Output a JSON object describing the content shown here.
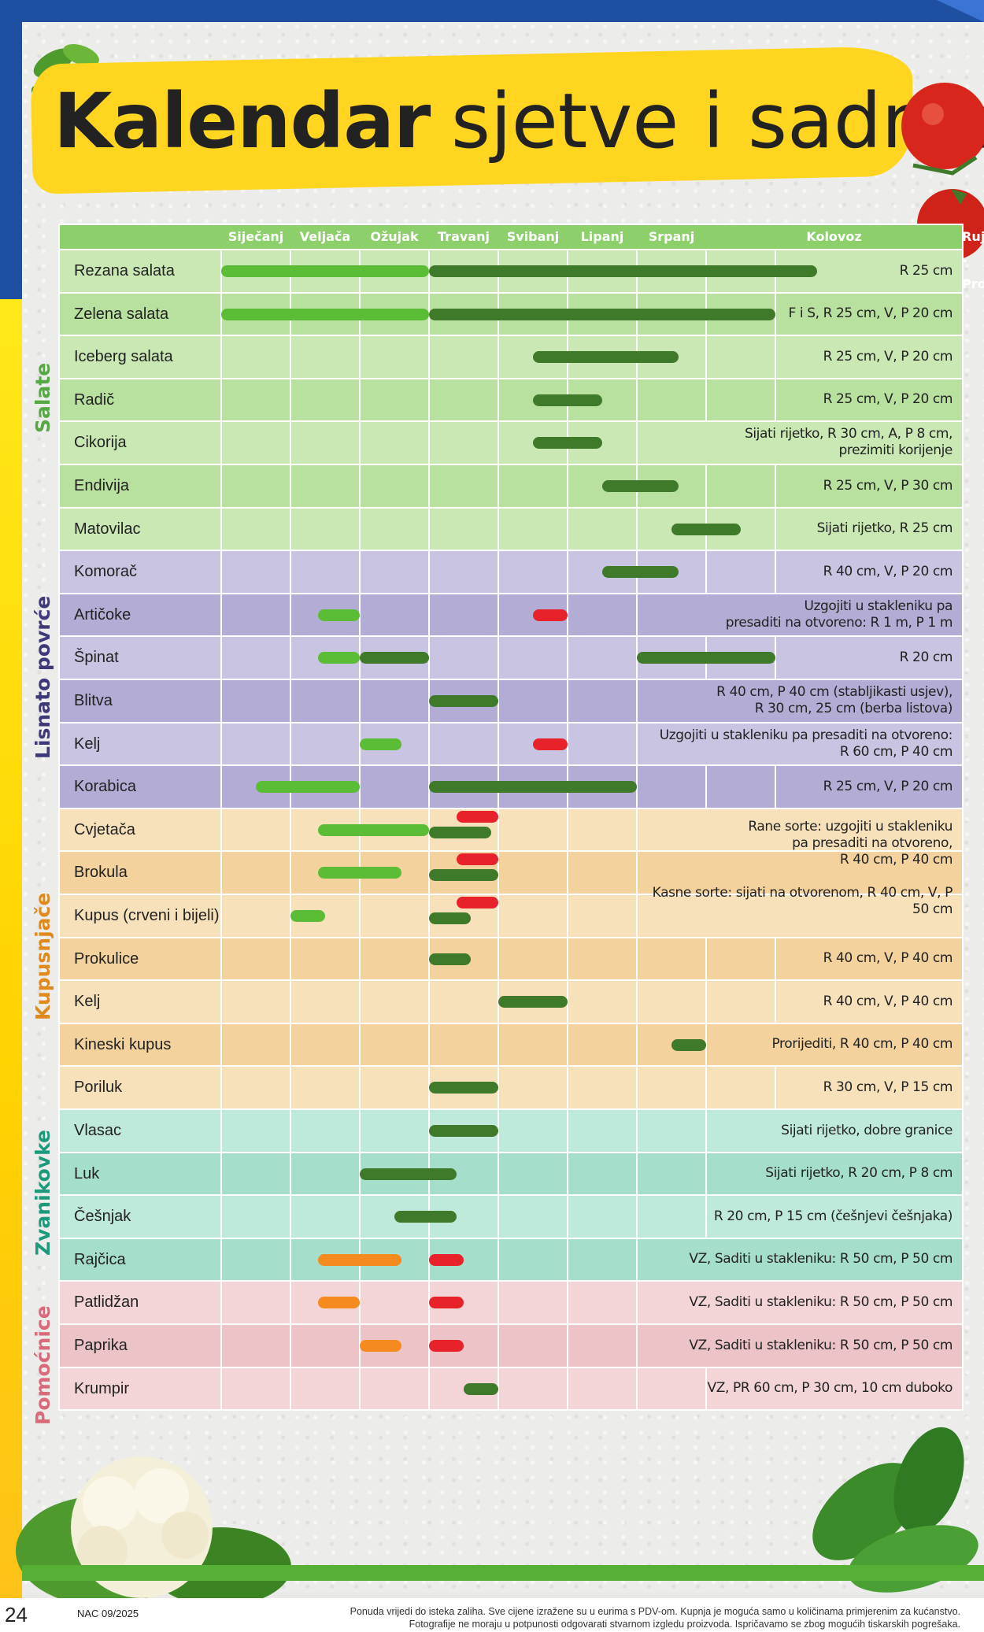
{
  "title": {
    "bold": "Kalendar",
    "light": "sjetve i sadnje"
  },
  "colors": {
    "sowing_outdoor": "#3f7a2a",
    "sowing_indoor": "#5bbd36",
    "planting_out": "#e8222b",
    "seedling_indoor": "#f58a1f",
    "header_bg": "#8dcf6b"
  },
  "months": [
    "Siječanj",
    "Veljača",
    "Ožujak",
    "Travanj",
    "Svibanj",
    "Lipanj",
    "Srpanj",
    "Kolovoz",
    "Rujan   -   Prosinac"
  ],
  "groups": [
    {
      "label": "Salate",
      "color": "#55a844",
      "rows": [
        0,
        6
      ]
    },
    {
      "label": "Lisnato povrće",
      "color": "#3e3a7a",
      "rows": [
        7,
        12
      ]
    },
    {
      "label": "Kupusnjače",
      "color": "#e08a1e",
      "rows": [
        13,
        19
      ]
    },
    {
      "label": "Zvanikovke",
      "color": "#1d9a7b",
      "rows": [
        20,
        23
      ]
    },
    {
      "label": "Pomoćnice",
      "color": "#d86a7a",
      "rows": [
        24,
        27
      ]
    }
  ],
  "rows": [
    {
      "name": "Rezana salata",
      "note": "R 25 cm",
      "bars": [
        [
          "g",
          0,
          3
        ],
        [
          "d",
          3,
          9.6
        ]
      ]
    },
    {
      "name": "Zelena salata",
      "note": "F i S, R 25 cm, V, P 20 cm",
      "bars": [
        [
          "g",
          0,
          3
        ],
        [
          "d",
          3,
          8.0
        ]
      ]
    },
    {
      "name": "Iceberg salata",
      "note": "R 25 cm, V, P 20 cm",
      "bars": [
        [
          "d",
          4.5,
          6.6
        ]
      ]
    },
    {
      "name": "Radič",
      "note": "R 25 cm, V, P 20 cm",
      "bars": [
        [
          "d",
          4.5,
          5.5
        ]
      ]
    },
    {
      "name": "Cikorija",
      "note": "Sijati rijetko, R 30 cm, A, P 8 cm,\nprezimiti korijenje",
      "bars": [
        [
          "d",
          4.5,
          5.5
        ]
      ]
    },
    {
      "name": "Endivija",
      "note": "R 25 cm, V, P 30 cm",
      "bars": [
        [
          "d",
          5.5,
          6.6
        ]
      ]
    },
    {
      "name": "Matovilac",
      "note": "Sijati rijetko, R 25 cm",
      "bars": [
        [
          "d",
          6.5,
          7.5
        ]
      ]
    },
    {
      "name": "Komorač",
      "note": "R 40 cm, V, P 20 cm",
      "bars": [
        [
          "d",
          5.5,
          6.6
        ]
      ]
    },
    {
      "name": "Artičoke",
      "note": "Uzgojiti u stakleniku pa\npresaditi na otvoreno: R 1 m, P 1 m",
      "bars": [
        [
          "g",
          1.4,
          2
        ],
        [
          "r",
          4.5,
          5
        ]
      ]
    },
    {
      "name": "Špinat",
      "note": "R 20 cm",
      "bars": [
        [
          "g",
          1.4,
          2
        ],
        [
          "d",
          2,
          3
        ],
        [
          "d",
          6,
          8
        ]
      ]
    },
    {
      "name": "Blitva",
      "note": "R 40 cm, P 40 cm (stabljikasti usjev),\nR 30 cm,  25 cm (berba listova)",
      "bars": [
        [
          "d",
          3,
          4
        ]
      ]
    },
    {
      "name": "Kelj",
      "note": "Uzgojiti u stakleniku pa presaditi na otvoreno:\nR 60 cm, P 40 cm",
      "bars": [
        [
          "g",
          2,
          2.6
        ],
        [
          "r",
          4.5,
          5
        ]
      ]
    },
    {
      "name": "Korabica",
      "note": "R 25 cm, V, P 20 cm",
      "bars": [
        [
          "g",
          0.5,
          2
        ],
        [
          "d",
          3,
          6
        ]
      ]
    },
    {
      "name": "Cvjetača",
      "note": "",
      "bars": [
        [
          "g",
          1.4,
          3
        ],
        [
          "r",
          3.4,
          4
        ],
        [
          "d",
          3,
          3.9
        ]
      ]
    },
    {
      "name": "Brokula",
      "note": "",
      "bars": [
        [
          "g",
          1.4,
          2.6
        ],
        [
          "r",
          3.4,
          4
        ],
        [
          "d",
          3,
          4
        ]
      ]
    },
    {
      "name": "Kupus (crveni i bijeli)",
      "note": "",
      "bars": [
        [
          "g",
          1,
          1.5
        ],
        [
          "r",
          3.4,
          4
        ],
        [
          "d",
          3,
          3.6
        ]
      ]
    },
    {
      "name": "Prokulice",
      "note": "R 40 cm, V, P 40 cm",
      "bars": [
        [
          "d",
          3,
          3.6
        ]
      ]
    },
    {
      "name": "Kelj",
      "note": "R 40 cm, V, P 40 cm",
      "bars": [
        [
          "d",
          4,
          5
        ]
      ]
    },
    {
      "name": "Kineski kupus",
      "note": "Prorijediti, R 40 cm, P 40 cm",
      "bars": [
        [
          "d",
          6.5,
          7
        ]
      ]
    },
    {
      "name": "Poriluk",
      "note": "R 30 cm, V, P 15 cm",
      "bars": [
        [
          "d",
          3,
          4
        ]
      ]
    },
    {
      "name": "Vlasac",
      "note": "Sijati rijetko, dobre granice",
      "bars": [
        [
          "d",
          3,
          4
        ]
      ]
    },
    {
      "name": "Luk",
      "note": "Sijati rijetko, R 20 cm, P 8 cm",
      "bars": [
        [
          "d",
          2,
          3.4
        ]
      ]
    },
    {
      "name": "Češnjak",
      "note": "R 20 cm, P 15 cm (češnjevi češnjaka)",
      "bars": [
        [
          "d",
          2.5,
          3.4
        ]
      ]
    },
    {
      "name": "Rajčica",
      "note": "VZ, Saditi u stakleniku: R 50 cm, P 50 cm",
      "bars": [
        [
          "o",
          1.4,
          2.6
        ],
        [
          "r",
          3,
          3.5
        ]
      ]
    },
    {
      "name": "Patlidžan",
      "note": "VZ, Saditi u stakleniku: R 50 cm, P 50 cm",
      "bars": [
        [
          "o",
          1.4,
          2
        ],
        [
          "r",
          3,
          3.5
        ]
      ]
    },
    {
      "name": "Paprika",
      "note": "VZ, Saditi u stakleniku: R 50 cm, P 50 cm",
      "bars": [
        [
          "o",
          2,
          2.6
        ],
        [
          "r",
          3,
          3.5
        ]
      ]
    },
    {
      "name": "Krumpir",
      "note": "VZ, PR 60 cm, P 30 cm, 10 cm duboko",
      "bars": [
        [
          "d",
          3.5,
          4
        ]
      ]
    }
  ],
  "merged_note": "Rane sorte: uzgojiti u stakleniku\npa presaditi na otvoreno,\nR 40 cm, P 40 cm\n\nKasne sorte: sijati na otvorenom, R 40 cm, V, P 50 cm",
  "footer": {
    "page_number": "24",
    "code": "NAC 09/2025",
    "disclaimer_1": "Ponuda vrijedi do isteka zaliha. Sve cijene izražene su u eurima s PDV-om. Kupnja je moguća samo u količinama primjerenim za kućanstvo.",
    "disclaimer_2": "Fotografije ne moraju u potpunosti odgovarati stvarnom izgledu proizvoda. Ispričavamo se zbog mogućih tiskarskih pogrešaka."
  }
}
